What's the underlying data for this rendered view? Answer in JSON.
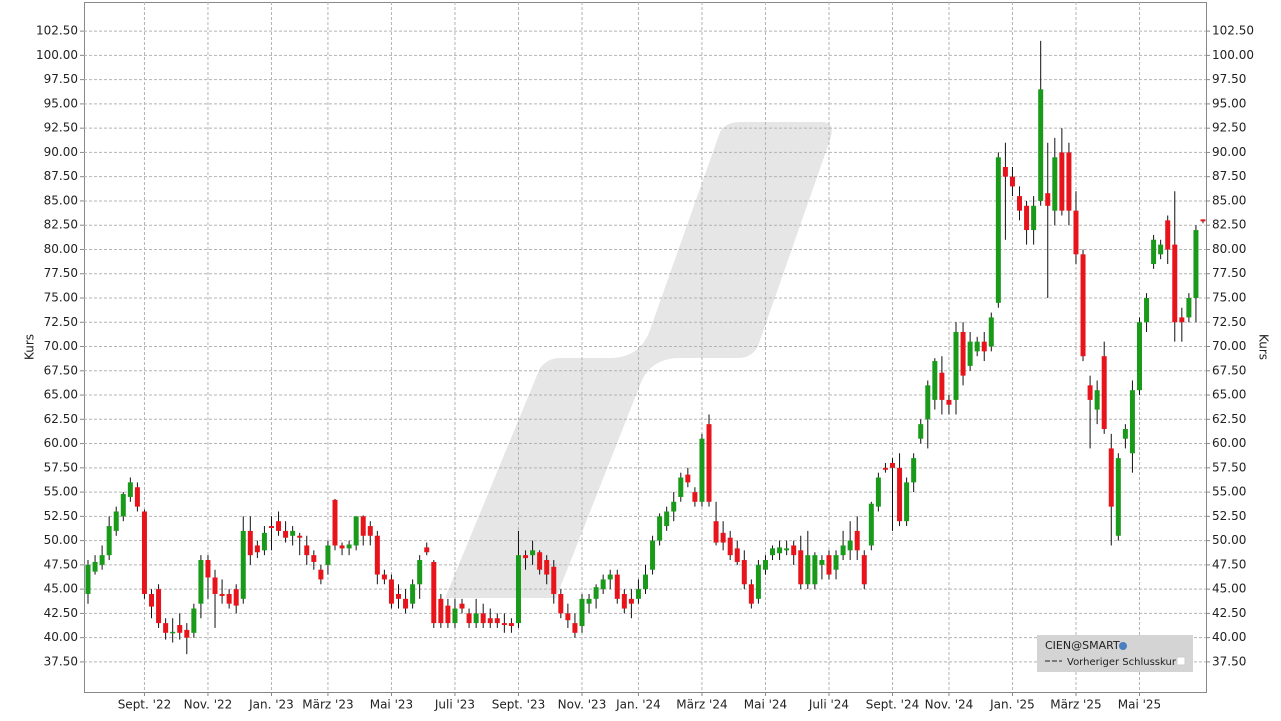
{
  "chart_data": {
    "type": "candlestick",
    "y_label": "Kurs",
    "categories": [
      null,
      null,
      null,
      null,
      null,
      null,
      null,
      null,
      "Sept. '22",
      null,
      null,
      null,
      null,
      null,
      null,
      null,
      null,
      "Nov. '22",
      null,
      null,
      null,
      null,
      null,
      null,
      null,
      null,
      "Jan. '23",
      null,
      null,
      null,
      null,
      null,
      null,
      null,
      "März '23",
      null,
      null,
      null,
      null,
      null,
      null,
      null,
      null,
      "Mai '23",
      null,
      null,
      null,
      null,
      null,
      null,
      null,
      null,
      "Juli '23",
      null,
      null,
      null,
      null,
      null,
      null,
      null,
      null,
      "Sept. '23",
      null,
      null,
      null,
      null,
      null,
      null,
      null,
      null,
      "Nov. '23",
      null,
      null,
      null,
      null,
      null,
      null,
      null,
      "Jan. '24",
      null,
      null,
      null,
      null,
      null,
      null,
      null,
      null,
      "März '24",
      null,
      null,
      null,
      null,
      null,
      null,
      null,
      null,
      "Mai '24",
      null,
      null,
      null,
      null,
      null,
      null,
      null,
      null,
      "Juli '24",
      null,
      null,
      null,
      null,
      null,
      null,
      null,
      null,
      "Sept. '24",
      null,
      null,
      null,
      null,
      null,
      null,
      null,
      "Nov. '24",
      null,
      null,
      null,
      null,
      null,
      null,
      null,
      null,
      "Jan. '25",
      null,
      null,
      null,
      null,
      null,
      null,
      null,
      null,
      "März '25",
      null,
      null,
      null,
      null,
      null,
      null,
      null,
      null,
      "Mai '25",
      null,
      null,
      null,
      null,
      null,
      null,
      null,
      null,
      null
    ],
    "ohlc": [
      [
        44.5,
        48,
        43.5,
        47.5
      ],
      [
        46.8,
        48.5,
        46.5,
        47.8
      ],
      [
        47.5,
        49.5,
        47,
        48.5
      ],
      [
        48.5,
        52.5,
        48,
        51.5
      ],
      [
        51,
        53.5,
        50.5,
        53
      ],
      [
        52.5,
        55,
        52,
        54.8
      ],
      [
        54.5,
        56.5,
        54,
        56
      ],
      [
        55.5,
        56,
        53,
        53.5
      ],
      [
        53,
        53.2,
        44,
        44.5
      ],
      [
        44.5,
        45,
        42,
        43.2
      ],
      [
        45,
        45.5,
        41,
        41.5
      ],
      [
        41.5,
        42,
        39.8,
        40.5
      ],
      [
        40.5,
        42,
        39.5,
        40.6
      ],
      [
        41.3,
        42.5,
        39.8,
        40.5
      ],
      [
        40.8,
        41.5,
        38.3,
        40
      ],
      [
        40.5,
        43.5,
        40,
        43
      ],
      [
        43.5,
        48.5,
        42,
        48
      ],
      [
        48,
        48.5,
        44,
        46.2
      ],
      [
        46.2,
        47,
        41,
        44.5
      ],
      [
        44.5,
        46,
        43.5,
        44.3
      ],
      [
        44.5,
        45,
        43,
        43.5
      ],
      [
        45,
        45.5,
        42.5,
        43.3
      ],
      [
        44,
        52.5,
        43.5,
        51
      ],
      [
        51,
        52.5,
        47.5,
        48.5
      ],
      [
        49.5,
        50,
        48.2,
        48.8
      ],
      [
        49,
        51.5,
        48.5,
        50.8
      ],
      [
        51.5,
        52.5,
        49,
        51.3
      ],
      [
        52,
        53,
        50.5,
        51
      ],
      [
        51,
        52,
        49.8,
        50.3
      ],
      [
        50.5,
        51.5,
        49.5,
        51
      ],
      [
        50.5,
        50.8,
        48.5,
        50.3
      ],
      [
        49.5,
        50.5,
        47.5,
        48.5
      ],
      [
        48.5,
        49,
        47,
        47.8
      ],
      [
        47,
        47.5,
        45.5,
        46
      ],
      [
        47.5,
        50,
        46.5,
        49.5
      ],
      [
        54.2,
        54.3,
        49,
        49.5
      ],
      [
        49.5,
        49.8,
        48.5,
        49.2
      ],
      [
        49.2,
        50,
        48.5,
        49.6
      ],
      [
        49.5,
        52.5,
        49,
        52.5
      ],
      [
        52.5,
        52.6,
        49.5,
        50.5
      ],
      [
        51.5,
        52,
        49.5,
        50.5
      ],
      [
        50.5,
        51,
        45.5,
        46.5
      ],
      [
        46.5,
        47,
        45.5,
        46
      ],
      [
        46,
        46.5,
        43,
        43.5
      ],
      [
        44.5,
        45.5,
        43,
        44
      ],
      [
        44,
        45,
        42.5,
        43
      ],
      [
        43.5,
        46,
        43,
        45.5
      ],
      [
        45.5,
        48.5,
        44,
        48
      ],
      [
        49.3,
        49.8,
        48.5,
        48.8
      ],
      [
        47.8,
        48,
        41,
        41.5
      ],
      [
        44,
        44.5,
        41,
        41.5
      ],
      [
        43.3,
        44,
        41,
        41.5
      ],
      [
        41.5,
        44,
        41,
        43
      ],
      [
        43.5,
        44,
        42.5,
        43
      ],
      [
        42.5,
        43,
        41,
        41.5
      ],
      [
        41.5,
        44,
        41,
        42.5
      ],
      [
        42.5,
        43.5,
        41,
        41.5
      ],
      [
        42,
        43,
        41,
        41.5
      ],
      [
        42,
        42.5,
        41,
        41.5
      ],
      [
        41.5,
        42.5,
        40.5,
        41.3
      ],
      [
        41.5,
        42,
        40.5,
        41.2
      ],
      [
        41.5,
        51,
        41,
        48.5
      ],
      [
        48.5,
        49,
        47,
        48.2
      ],
      [
        48.5,
        50,
        47.5,
        49
      ],
      [
        48.8,
        49,
        46.5,
        47
      ],
      [
        48,
        48.5,
        45.5,
        46.5
      ],
      [
        47.3,
        48,
        43.5,
        44.5
      ],
      [
        44.5,
        45,
        42,
        42.5
      ],
      [
        42.5,
        43.5,
        41,
        41.8
      ],
      [
        41.5,
        42.5,
        40,
        40.5
      ],
      [
        41.2,
        44.5,
        40.5,
        44
      ],
      [
        43.5,
        44.5,
        42.5,
        44
      ],
      [
        44,
        45.5,
        43,
        45.2
      ],
      [
        45,
        46.5,
        44.5,
        46
      ],
      [
        46,
        47,
        45,
        46.5
      ],
      [
        46.5,
        47,
        43.5,
        44
      ],
      [
        44.5,
        45,
        42.5,
        43
      ],
      [
        44,
        45,
        42,
        43.5
      ],
      [
        44,
        46,
        43.5,
        45
      ],
      [
        45,
        47.5,
        44.5,
        46.5
      ],
      [
        47,
        50.5,
        46.5,
        50
      ],
      [
        50,
        52.8,
        49.5,
        52.5
      ],
      [
        51.5,
        53.5,
        51,
        53
      ],
      [
        53,
        55,
        52,
        54
      ],
      [
        54.5,
        57,
        54,
        56.5
      ],
      [
        56.8,
        57.5,
        55.5,
        56
      ],
      [
        55,
        55.5,
        53.5,
        54
      ],
      [
        54,
        61,
        53.5,
        60.5
      ],
      [
        62,
        63,
        53.5,
        54
      ],
      [
        52,
        54,
        49.5,
        49.8
      ],
      [
        50.8,
        52,
        49,
        49.8
      ],
      [
        50.3,
        51,
        48,
        48.5
      ],
      [
        49.2,
        50,
        47.5,
        47.8
      ],
      [
        48,
        49,
        45,
        45.5
      ],
      [
        45.5,
        46,
        43,
        43.5
      ],
      [
        44,
        48,
        43.5,
        47.5
      ],
      [
        47,
        48.5,
        46.5,
        48
      ],
      [
        48.5,
        49.5,
        48,
        49.2
      ],
      [
        48.7,
        50,
        48,
        49.3
      ],
      [
        49,
        50,
        48.5,
        49.2
      ],
      [
        49.5,
        50,
        47.5,
        48.5
      ],
      [
        49,
        50.5,
        45,
        45.5
      ],
      [
        45.5,
        51,
        45,
        48.5
      ],
      [
        45.5,
        48.8,
        45,
        48.5
      ],
      [
        47.5,
        48.5,
        46,
        48
      ],
      [
        48.5,
        49,
        46,
        46.5
      ],
      [
        47,
        49,
        46,
        48.5
      ],
      [
        48.5,
        51,
        48,
        49.5
      ],
      [
        49,
        52,
        48,
        50
      ],
      [
        51,
        52.5,
        48,
        49
      ],
      [
        48.5,
        49,
        45,
        45.5
      ],
      [
        49.5,
        54,
        49,
        53.8
      ],
      [
        53.5,
        57,
        53,
        56.5
      ],
      [
        57.5,
        58,
        57,
        57.3
      ],
      [
        58,
        58.5,
        51,
        57.5
      ],
      [
        57.5,
        59,
        51.5,
        52
      ],
      [
        52,
        56.5,
        51.5,
        56
      ],
      [
        56,
        59,
        55,
        58.5
      ],
      [
        60.5,
        62.5,
        60,
        62
      ],
      [
        62.5,
        66.5,
        59.5,
        66
      ],
      [
        64.5,
        68.8,
        63.5,
        68.5
      ],
      [
        67.3,
        69,
        63,
        64.5
      ],
      [
        64.5,
        65,
        63,
        64
      ],
      [
        64.5,
        72.5,
        63,
        71.5
      ],
      [
        71.5,
        72.5,
        66,
        67
      ],
      [
        68,
        71.5,
        67.5,
        70.5
      ],
      [
        69.5,
        71,
        69,
        70.5
      ],
      [
        70.5,
        71.5,
        68.5,
        69.5
      ],
      [
        70,
        73.5,
        69.5,
        73
      ],
      [
        74.5,
        90,
        74,
        89.5
      ],
      [
        88.5,
        91,
        81,
        87.5
      ],
      [
        87.5,
        88.5,
        85.5,
        86.5
      ],
      [
        85.5,
        86.5,
        83,
        84
      ],
      [
        84.5,
        85,
        80.5,
        82
      ],
      [
        82,
        85.5,
        80.5,
        84.5
      ],
      [
        85,
        101.5,
        84.5,
        96.5
      ],
      [
        85.8,
        91,
        75,
        84.5
      ],
      [
        84,
        91.5,
        82.5,
        89.5
      ],
      [
        90,
        92.5,
        83.5,
        84
      ],
      [
        90,
        91,
        82.5,
        84
      ],
      [
        84,
        86,
        78.5,
        79.5
      ],
      [
        79.5,
        80,
        68.5,
        69
      ],
      [
        66,
        67,
        59.5,
        64.5
      ],
      [
        63.5,
        66.5,
        62,
        65.5
      ],
      [
        69,
        70.5,
        61,
        61.5
      ],
      [
        59.5,
        61,
        49.5,
        53.5
      ],
      [
        50.5,
        59,
        50,
        58.5
      ],
      [
        60.5,
        62,
        59.5,
        61.5
      ],
      [
        59,
        66.5,
        57,
        65.5
      ],
      [
        65.5,
        73,
        65,
        72.5
      ],
      [
        72.5,
        75.5,
        71.5,
        75
      ],
      [
        78.5,
        81.5,
        78,
        81
      ],
      [
        79.5,
        81,
        79,
        80.5
      ],
      [
        83,
        83.5,
        78.5,
        80
      ],
      [
        80.5,
        86,
        70.5,
        72.5
      ],
      [
        73,
        74,
        70.5,
        72.5
      ],
      [
        73,
        75.5,
        72.5,
        75
      ],
      [
        75,
        82.5,
        72.5,
        82
      ],
      [
        83.1,
        83.1,
        82.7,
        82.9
      ]
    ],
    "up_color": "#1a9a1a",
    "down_color": "#e8141c",
    "ylim": [
      34.4,
      105.5
    ],
    "yticks": [
      {
        "value": 37.5,
        "label": "37.50"
      },
      {
        "value": 40,
        "label": "40.00"
      },
      {
        "value": 42.5,
        "label": "42.50"
      },
      {
        "value": 45,
        "label": "45.00"
      },
      {
        "value": 47.5,
        "label": "47.50"
      },
      {
        "value": 50,
        "label": "50.00"
      },
      {
        "value": 52.5,
        "label": "52.50"
      },
      {
        "value": 55,
        "label": "55.00"
      },
      {
        "value": 57.5,
        "label": "57.50"
      },
      {
        "value": 60,
        "label": "60.00"
      },
      {
        "value": 62.5,
        "label": "62.50"
      },
      {
        "value": 65,
        "label": "65.00"
      },
      {
        "value": 67.5,
        "label": "67.50"
      },
      {
        "value": 70,
        "label": "70.00"
      },
      {
        "value": 72.5,
        "label": "72.50"
      },
      {
        "value": 75,
        "label": "75.00"
      },
      {
        "value": 77.5,
        "label": "77.50"
      },
      {
        "value": 80,
        "label": "80.00"
      },
      {
        "value": 82.5,
        "label": "82.50"
      },
      {
        "value": 85,
        "label": "85.00"
      },
      {
        "value": 87.5,
        "label": "87.50"
      },
      {
        "value": 90,
        "label": "90.00"
      },
      {
        "value": 92.5,
        "label": "92.50"
      },
      {
        "value": 95,
        "label": "95.00"
      },
      {
        "value": 97.5,
        "label": "97.50"
      },
      {
        "value": 100,
        "label": "100.00"
      },
      {
        "value": 102.5,
        "label": "102.50"
      }
    ],
    "grid": true,
    "legend": {
      "title": "CIEN@SMART",
      "items": [
        "Vorheriger Schlusskurs"
      ],
      "position": "lower right"
    }
  }
}
